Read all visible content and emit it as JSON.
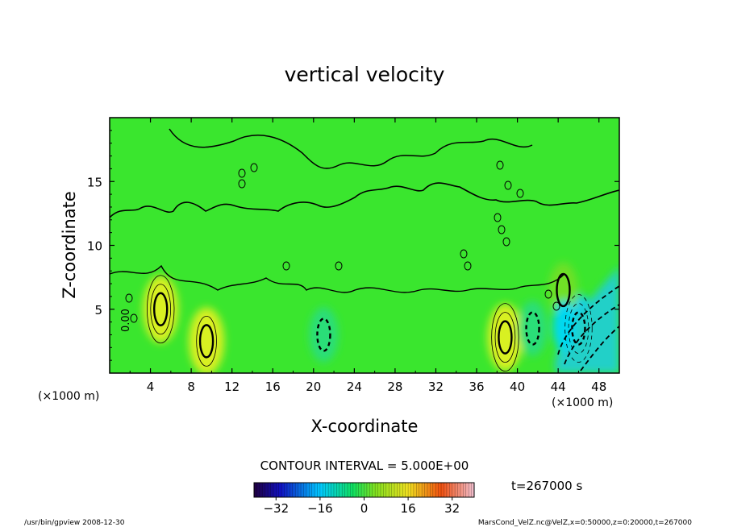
{
  "chart_data": {
    "type": "heatmap",
    "title": "vertical velocity",
    "xlabel": "X-coordinate",
    "ylabel": "Z-coordinate",
    "x_unit": "(×1000 m)",
    "y_unit": "(×1000 m)",
    "xlim": [
      0,
      50
    ],
    "ylim": [
      0,
      20
    ],
    "x_ticks": [
      4,
      8,
      12,
      16,
      20,
      24,
      28,
      32,
      36,
      40,
      44,
      48
    ],
    "y_ticks": [
      5,
      10,
      15
    ],
    "x_tick_labels": [
      "4",
      "8",
      "12",
      "16",
      "20",
      "24",
      "28",
      "32",
      "36",
      "40",
      "44",
      "48"
    ],
    "y_tick_labels": [
      "5",
      "10",
      "15"
    ],
    "contour_interval_text": "CONTOUR INTERVAL = 5.000E+00",
    "contour_label": "0.00",
    "time_text": "t=267000 s",
    "colorbar": {
      "min": -40,
      "max": 40,
      "ticks": [
        -32,
        -16,
        0,
        16,
        32
      ],
      "tick_labels": [
        "−32",
        "−16",
        "0",
        "16",
        "32"
      ]
    },
    "features": [
      {
        "kind": "updraft",
        "x": 5,
        "z": 5,
        "value": 25
      },
      {
        "kind": "updraft",
        "x": 9.5,
        "z": 2.5,
        "value": 22
      },
      {
        "kind": "updraft",
        "x": 38.8,
        "z": 2.8,
        "value": 24
      },
      {
        "kind": "downdraft",
        "x": 46,
        "z": 3.5,
        "value": -25
      },
      {
        "kind": "weak-updraft",
        "x": 44.5,
        "z": 6.5,
        "value": 10
      },
      {
        "kind": "weak-downdraft",
        "x": 21,
        "z": 3,
        "value": -6
      },
      {
        "kind": "weak-downdraft",
        "x": 41.5,
        "z": 3.5,
        "value": -8
      }
    ]
  },
  "footer": {
    "left": "/usr/bin/gpview   2008-12-30",
    "right": "MarsCond_VelZ.nc@VelZ,x=0:50000,z=0:20000,t=267000"
  }
}
